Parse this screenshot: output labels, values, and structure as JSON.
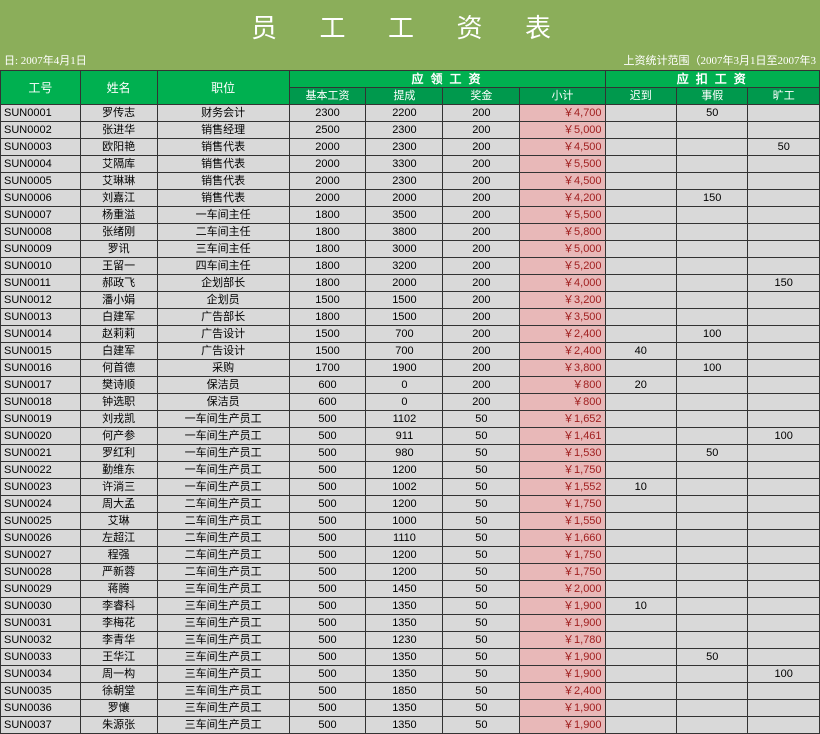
{
  "title": "员 工 工 资 表",
  "meta_left": "日: 2007年4月1日",
  "meta_right": "上资统计范围（2007年3月1日至2007年3",
  "headers": {
    "id": "工号",
    "name": "姓名",
    "position": "职位",
    "receivable": "应 领 工 资",
    "deductions": "应 扣 工 资",
    "base": "基本工资",
    "commission": "提成",
    "bonus": "奖金",
    "subtotal": "小计",
    "late": "迟到",
    "sick": "事假",
    "absent": "旷工"
  },
  "rows": [
    {
      "id": "SUN0001",
      "name": "罗传志",
      "pos": "财务会计",
      "base": "2300",
      "comm": "2200",
      "bon": "200",
      "sub": "￥4,700",
      "late": "",
      "sick": "50",
      "abs": ""
    },
    {
      "id": "SUN0002",
      "name": "张进华",
      "pos": "销售经理",
      "base": "2500",
      "comm": "2300",
      "bon": "200",
      "sub": "￥5,000",
      "late": "",
      "sick": "",
      "abs": ""
    },
    {
      "id": "SUN0003",
      "name": "欧阳艳",
      "pos": "销售代表",
      "base": "2000",
      "comm": "2300",
      "bon": "200",
      "sub": "￥4,500",
      "late": "",
      "sick": "",
      "abs": "50"
    },
    {
      "id": "SUN0004",
      "name": "艾隔库",
      "pos": "销售代表",
      "base": "2000",
      "comm": "3300",
      "bon": "200",
      "sub": "￥5,500",
      "late": "",
      "sick": "",
      "abs": ""
    },
    {
      "id": "SUN0005",
      "name": "艾琳琳",
      "pos": "销售代表",
      "base": "2000",
      "comm": "2300",
      "bon": "200",
      "sub": "￥4,500",
      "late": "",
      "sick": "",
      "abs": ""
    },
    {
      "id": "SUN0006",
      "name": "刘嘉江",
      "pos": "销售代表",
      "base": "2000",
      "comm": "2000",
      "bon": "200",
      "sub": "￥4,200",
      "late": "",
      "sick": "150",
      "abs": ""
    },
    {
      "id": "SUN0007",
      "name": "杨重溢",
      "pos": "一车间主任",
      "base": "1800",
      "comm": "3500",
      "bon": "200",
      "sub": "￥5,500",
      "late": "",
      "sick": "",
      "abs": ""
    },
    {
      "id": "SUN0008",
      "name": "张绪刚",
      "pos": "二车间主任",
      "base": "1800",
      "comm": "3800",
      "bon": "200",
      "sub": "￥5,800",
      "late": "",
      "sick": "",
      "abs": ""
    },
    {
      "id": "SUN0009",
      "name": "罗讯",
      "pos": "三车间主任",
      "base": "1800",
      "comm": "3000",
      "bon": "200",
      "sub": "￥5,000",
      "late": "",
      "sick": "",
      "abs": ""
    },
    {
      "id": "SUN0010",
      "name": "王留一",
      "pos": "四车间主任",
      "base": "1800",
      "comm": "3200",
      "bon": "200",
      "sub": "￥5,200",
      "late": "",
      "sick": "",
      "abs": ""
    },
    {
      "id": "SUN0011",
      "name": "郝政飞",
      "pos": "企划部长",
      "base": "1800",
      "comm": "2000",
      "bon": "200",
      "sub": "￥4,000",
      "late": "",
      "sick": "",
      "abs": "150"
    },
    {
      "id": "SUN0012",
      "name": "潘小娟",
      "pos": "企划员",
      "base": "1500",
      "comm": "1500",
      "bon": "200",
      "sub": "￥3,200",
      "late": "",
      "sick": "",
      "abs": ""
    },
    {
      "id": "SUN0013",
      "name": "白建军",
      "pos": "广告部长",
      "base": "1800",
      "comm": "1500",
      "bon": "200",
      "sub": "￥3,500",
      "late": "",
      "sick": "",
      "abs": ""
    },
    {
      "id": "SUN0014",
      "name": "赵莉莉",
      "pos": "广告设计",
      "base": "1500",
      "comm": "700",
      "bon": "200",
      "sub": "￥2,400",
      "late": "",
      "sick": "100",
      "abs": ""
    },
    {
      "id": "SUN0015",
      "name": "白建军",
      "pos": "广告设计",
      "base": "1500",
      "comm": "700",
      "bon": "200",
      "sub": "￥2,400",
      "late": "40",
      "sick": "",
      "abs": ""
    },
    {
      "id": "SUN0016",
      "name": "何首德",
      "pos": "采购",
      "base": "1700",
      "comm": "1900",
      "bon": "200",
      "sub": "￥3,800",
      "late": "",
      "sick": "100",
      "abs": ""
    },
    {
      "id": "SUN0017",
      "name": "樊诗顺",
      "pos": "保洁员",
      "base": "600",
      "comm": "0",
      "bon": "200",
      "sub": "￥800",
      "late": "20",
      "sick": "",
      "abs": ""
    },
    {
      "id": "SUN0018",
      "name": "钟选职",
      "pos": "保洁员",
      "base": "600",
      "comm": "0",
      "bon": "200",
      "sub": "￥800",
      "late": "",
      "sick": "",
      "abs": ""
    },
    {
      "id": "SUN0019",
      "name": "刘戎凯",
      "pos": "一车间生产员工",
      "base": "500",
      "comm": "1102",
      "bon": "50",
      "sub": "￥1,652",
      "late": "",
      "sick": "",
      "abs": ""
    },
    {
      "id": "SUN0020",
      "name": "何产参",
      "pos": "一车间生产员工",
      "base": "500",
      "comm": "911",
      "bon": "50",
      "sub": "￥1,461",
      "late": "",
      "sick": "",
      "abs": "100"
    },
    {
      "id": "SUN0021",
      "name": "罗红利",
      "pos": "一车间生产员工",
      "base": "500",
      "comm": "980",
      "bon": "50",
      "sub": "￥1,530",
      "late": "",
      "sick": "50",
      "abs": ""
    },
    {
      "id": "SUN0022",
      "name": "勤维东",
      "pos": "一车间生产员工",
      "base": "500",
      "comm": "1200",
      "bon": "50",
      "sub": "￥1,750",
      "late": "",
      "sick": "",
      "abs": ""
    },
    {
      "id": "SUN0023",
      "name": "许淌三",
      "pos": "一车间生产员工",
      "base": "500",
      "comm": "1002",
      "bon": "50",
      "sub": "￥1,552",
      "late": "10",
      "sick": "",
      "abs": ""
    },
    {
      "id": "SUN0024",
      "name": "周大孟",
      "pos": "二车间生产员工",
      "base": "500",
      "comm": "1200",
      "bon": "50",
      "sub": "￥1,750",
      "late": "",
      "sick": "",
      "abs": ""
    },
    {
      "id": "SUN0025",
      "name": "艾琳",
      "pos": "二车间生产员工",
      "base": "500",
      "comm": "1000",
      "bon": "50",
      "sub": "￥1,550",
      "late": "",
      "sick": "",
      "abs": ""
    },
    {
      "id": "SUN0026",
      "name": "左超江",
      "pos": "二车间生产员工",
      "base": "500",
      "comm": "1110",
      "bon": "50",
      "sub": "￥1,660",
      "late": "",
      "sick": "",
      "abs": ""
    },
    {
      "id": "SUN0027",
      "name": "程强",
      "pos": "二车间生产员工",
      "base": "500",
      "comm": "1200",
      "bon": "50",
      "sub": "￥1,750",
      "late": "",
      "sick": "",
      "abs": ""
    },
    {
      "id": "SUN0028",
      "name": "严新蓉",
      "pos": "二车间生产员工",
      "base": "500",
      "comm": "1200",
      "bon": "50",
      "sub": "￥1,750",
      "late": "",
      "sick": "",
      "abs": ""
    },
    {
      "id": "SUN0029",
      "name": "蒋腾",
      "pos": "三车间生产员工",
      "base": "500",
      "comm": "1450",
      "bon": "50",
      "sub": "￥2,000",
      "late": "",
      "sick": "",
      "abs": ""
    },
    {
      "id": "SUN0030",
      "name": "李睿科",
      "pos": "三车间生产员工",
      "base": "500",
      "comm": "1350",
      "bon": "50",
      "sub": "￥1,900",
      "late": "10",
      "sick": "",
      "abs": ""
    },
    {
      "id": "SUN0031",
      "name": "李梅花",
      "pos": "三车间生产员工",
      "base": "500",
      "comm": "1350",
      "bon": "50",
      "sub": "￥1,900",
      "late": "",
      "sick": "",
      "abs": ""
    },
    {
      "id": "SUN0032",
      "name": "李青华",
      "pos": "三车间生产员工",
      "base": "500",
      "comm": "1230",
      "bon": "50",
      "sub": "￥1,780",
      "late": "",
      "sick": "",
      "abs": ""
    },
    {
      "id": "SUN0033",
      "name": "王华江",
      "pos": "三车间生产员工",
      "base": "500",
      "comm": "1350",
      "bon": "50",
      "sub": "￥1,900",
      "late": "",
      "sick": "50",
      "abs": ""
    },
    {
      "id": "SUN0034",
      "name": "周一构",
      "pos": "三车间生产员工",
      "base": "500",
      "comm": "1350",
      "bon": "50",
      "sub": "￥1,900",
      "late": "",
      "sick": "",
      "abs": "100"
    },
    {
      "id": "SUN0035",
      "name": "徐朝堂",
      "pos": "三车间生产员工",
      "base": "500",
      "comm": "1850",
      "bon": "50",
      "sub": "￥2,400",
      "late": "",
      "sick": "",
      "abs": ""
    },
    {
      "id": "SUN0036",
      "name": "罗懹",
      "pos": "三车间生产员工",
      "base": "500",
      "comm": "1350",
      "bon": "50",
      "sub": "￥1,900",
      "late": "",
      "sick": "",
      "abs": ""
    },
    {
      "id": "SUN0037",
      "name": "朱源张",
      "pos": "三车间生产员工",
      "base": "500",
      "comm": "1350",
      "bon": "50",
      "sub": "￥1,900",
      "late": "",
      "sick": "",
      "abs": ""
    }
  ]
}
